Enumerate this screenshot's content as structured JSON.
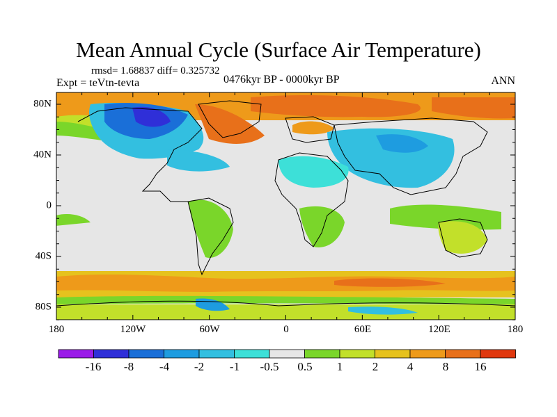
{
  "title": "Mean Annual Cycle (Surface Air Temperature)",
  "stats": "rmsd= 1.68837 diff= 0.325732",
  "experiment": "Expt = teVtn-tevta",
  "period": "0476kyr BP - 0000kyr BP",
  "season": "ANN",
  "lon_labels": [
    "180",
    "120W",
    "60W",
    "0",
    "60E",
    "120E",
    "180"
  ],
  "lat_labels": [
    "80N",
    "40N",
    "0",
    "40S",
    "80S"
  ],
  "colorbar": {
    "labels": [
      "-16",
      "-8",
      "-4",
      "-2",
      "-1",
      "-0.5",
      "0.5",
      "1",
      "2",
      "4",
      "8",
      "16"
    ],
    "colors": [
      "#9a1be8",
      "#2f2fd8",
      "#1a6fd8",
      "#1e9ce0",
      "#33bfe0",
      "#3de0d8",
      "#e6e6e6",
      "#7ad62a",
      "#c2e02a",
      "#e6c21e",
      "#ee9a1a",
      "#e8701a",
      "#e0380f"
    ]
  },
  "colors": {
    "ocean_neutral": "#e6e6e6",
    "warm_orange": "#ee9a1a",
    "warm_yellow": "#e6c21e",
    "warm_red": "#e8701a",
    "cool_cyan": "#33bfe0",
    "cool_blue": "#1a6fd8",
    "green": "#7ad62a"
  }
}
